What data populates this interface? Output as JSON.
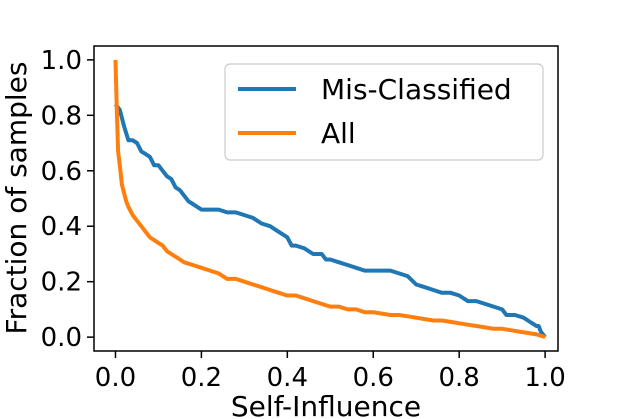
{
  "chart_data": {
    "type": "line",
    "title": "",
    "xlabel": "Self-Influence",
    "ylabel": "Fraction of samples",
    "xlim": [
      -0.05,
      1.03
    ],
    "ylim": [
      -0.05,
      1.05
    ],
    "xticks": [
      0.0,
      0.2,
      0.4,
      0.6,
      0.8,
      1.0
    ],
    "xtick_labels": [
      "0.0",
      "0.2",
      "0.4",
      "0.6",
      "0.8",
      "1.0"
    ],
    "yticks": [
      0.0,
      0.2,
      0.4,
      0.6,
      0.8,
      1.0
    ],
    "ytick_labels": [
      "0.0",
      "0.2",
      "0.4",
      "0.6",
      "0.8",
      "1.0"
    ],
    "grid": false,
    "legend_position": "top-right",
    "series": [
      {
        "name": "Mis-Classified",
        "color": "#1f77b4",
        "points": [
          [
            0.0,
            0.84
          ],
          [
            0.01,
            0.82
          ],
          [
            0.02,
            0.76
          ],
          [
            0.03,
            0.71
          ],
          [
            0.04,
            0.71
          ],
          [
            0.05,
            0.7
          ],
          [
            0.06,
            0.67
          ],
          [
            0.07,
            0.66
          ],
          [
            0.08,
            0.65
          ],
          [
            0.09,
            0.62
          ],
          [
            0.1,
            0.62
          ],
          [
            0.11,
            0.6
          ],
          [
            0.12,
            0.58
          ],
          [
            0.13,
            0.57
          ],
          [
            0.14,
            0.54
          ],
          [
            0.15,
            0.53
          ],
          [
            0.16,
            0.51
          ],
          [
            0.17,
            0.49
          ],
          [
            0.18,
            0.48
          ],
          [
            0.19,
            0.47
          ],
          [
            0.2,
            0.46
          ],
          [
            0.22,
            0.46
          ],
          [
            0.24,
            0.46
          ],
          [
            0.26,
            0.45
          ],
          [
            0.28,
            0.45
          ],
          [
            0.3,
            0.44
          ],
          [
            0.32,
            0.43
          ],
          [
            0.34,
            0.41
          ],
          [
            0.36,
            0.4
          ],
          [
            0.38,
            0.38
          ],
          [
            0.4,
            0.36
          ],
          [
            0.41,
            0.33
          ],
          [
            0.42,
            0.33
          ],
          [
            0.44,
            0.32
          ],
          [
            0.46,
            0.3
          ],
          [
            0.48,
            0.3
          ],
          [
            0.49,
            0.28
          ],
          [
            0.5,
            0.28
          ],
          [
            0.52,
            0.27
          ],
          [
            0.54,
            0.26
          ],
          [
            0.56,
            0.25
          ],
          [
            0.58,
            0.24
          ],
          [
            0.6,
            0.24
          ],
          [
            0.62,
            0.24
          ],
          [
            0.64,
            0.24
          ],
          [
            0.66,
            0.23
          ],
          [
            0.68,
            0.22
          ],
          [
            0.7,
            0.19
          ],
          [
            0.72,
            0.18
          ],
          [
            0.74,
            0.17
          ],
          [
            0.76,
            0.16
          ],
          [
            0.78,
            0.16
          ],
          [
            0.8,
            0.15
          ],
          [
            0.82,
            0.13
          ],
          [
            0.84,
            0.13
          ],
          [
            0.86,
            0.12
          ],
          [
            0.88,
            0.11
          ],
          [
            0.9,
            0.1
          ],
          [
            0.91,
            0.08
          ],
          [
            0.93,
            0.08
          ],
          [
            0.95,
            0.07
          ],
          [
            0.96,
            0.06
          ],
          [
            0.97,
            0.05
          ],
          [
            0.98,
            0.04
          ],
          [
            0.985,
            0.04
          ],
          [
            0.99,
            0.02
          ],
          [
            1.0,
            0.0
          ]
        ]
      },
      {
        "name": "All",
        "color": "#ff7f0e",
        "points": [
          [
            0.0,
            1.0
          ],
          [
            0.003,
            0.82
          ],
          [
            0.006,
            0.67
          ],
          [
            0.01,
            0.62
          ],
          [
            0.015,
            0.55
          ],
          [
            0.02,
            0.52
          ],
          [
            0.025,
            0.49
          ],
          [
            0.03,
            0.47
          ],
          [
            0.04,
            0.44
          ],
          [
            0.05,
            0.42
          ],
          [
            0.06,
            0.4
          ],
          [
            0.07,
            0.38
          ],
          [
            0.08,
            0.36
          ],
          [
            0.09,
            0.35
          ],
          [
            0.1,
            0.34
          ],
          [
            0.11,
            0.33
          ],
          [
            0.12,
            0.31
          ],
          [
            0.13,
            0.3
          ],
          [
            0.14,
            0.29
          ],
          [
            0.15,
            0.28
          ],
          [
            0.16,
            0.27
          ],
          [
            0.18,
            0.26
          ],
          [
            0.2,
            0.25
          ],
          [
            0.22,
            0.24
          ],
          [
            0.24,
            0.23
          ],
          [
            0.26,
            0.21
          ],
          [
            0.28,
            0.21
          ],
          [
            0.3,
            0.2
          ],
          [
            0.32,
            0.19
          ],
          [
            0.34,
            0.18
          ],
          [
            0.36,
            0.17
          ],
          [
            0.38,
            0.16
          ],
          [
            0.4,
            0.15
          ],
          [
            0.42,
            0.15
          ],
          [
            0.44,
            0.14
          ],
          [
            0.46,
            0.13
          ],
          [
            0.48,
            0.12
          ],
          [
            0.5,
            0.11
          ],
          [
            0.52,
            0.11
          ],
          [
            0.54,
            0.1
          ],
          [
            0.56,
            0.1
          ],
          [
            0.58,
            0.09
          ],
          [
            0.6,
            0.09
          ],
          [
            0.62,
            0.085
          ],
          [
            0.64,
            0.08
          ],
          [
            0.66,
            0.08
          ],
          [
            0.68,
            0.075
          ],
          [
            0.7,
            0.07
          ],
          [
            0.72,
            0.065
          ],
          [
            0.74,
            0.06
          ],
          [
            0.76,
            0.06
          ],
          [
            0.78,
            0.055
          ],
          [
            0.8,
            0.05
          ],
          [
            0.82,
            0.045
          ],
          [
            0.84,
            0.04
          ],
          [
            0.86,
            0.035
          ],
          [
            0.88,
            0.03
          ],
          [
            0.9,
            0.03
          ],
          [
            0.92,
            0.025
          ],
          [
            0.94,
            0.02
          ],
          [
            0.96,
            0.015
          ],
          [
            0.98,
            0.01
          ],
          [
            1.0,
            0.0
          ]
        ]
      }
    ]
  }
}
